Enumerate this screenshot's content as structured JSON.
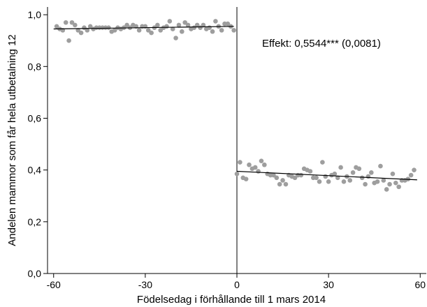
{
  "chart_data": {
    "type": "scatter",
    "title": "",
    "xlabel": "Födelsedag i förhållande till 1 mars 2014",
    "ylabel": "Andelen mammor som får hela utbetalning 12",
    "xlim": [
      -62,
      62
    ],
    "ylim": [
      0.0,
      1.03
    ],
    "xticks": [
      -60,
      -30,
      0,
      30,
      60
    ],
    "yticks": [
      0.0,
      0.2,
      0.4,
      0.6,
      0.8,
      1.0
    ],
    "xtick_labels": [
      "-60",
      "-30",
      "0",
      "30",
      "60"
    ],
    "ytick_labels": [
      "0,0",
      "0,2",
      "0,4",
      "0,6",
      "0,8",
      "1,0"
    ],
    "grid": false,
    "cutoff_x": 0,
    "annotation": "Effekt: 0,5544*** (0,0081)",
    "marker_color": "#9e9e9e",
    "line_color": "#000000",
    "points": [
      [
        -59,
        0.955
      ],
      [
        -58,
        0.945
      ],
      [
        -57,
        0.94
      ],
      [
        -56,
        0.97
      ],
      [
        -55,
        0.9
      ],
      [
        -54,
        0.97
      ],
      [
        -53,
        0.96
      ],
      [
        -52,
        0.94
      ],
      [
        -51,
        0.93
      ],
      [
        -50,
        0.95
      ],
      [
        -49,
        0.94
      ],
      [
        -48,
        0.955
      ],
      [
        -47,
        0.945
      ],
      [
        -46,
        0.95
      ],
      [
        -45,
        0.95
      ],
      [
        -44,
        0.95
      ],
      [
        -43,
        0.95
      ],
      [
        -42,
        0.95
      ],
      [
        -41,
        0.935
      ],
      [
        -40,
        0.94
      ],
      [
        -39,
        0.95
      ],
      [
        -38,
        0.945
      ],
      [
        -37,
        0.95
      ],
      [
        -36,
        0.96
      ],
      [
        -35,
        0.95
      ],
      [
        -34,
        0.96
      ],
      [
        -33,
        0.955
      ],
      [
        -32,
        0.94
      ],
      [
        -31,
        0.955
      ],
      [
        -30,
        0.955
      ],
      [
        -29,
        0.94
      ],
      [
        -28,
        0.93
      ],
      [
        -27,
        0.95
      ],
      [
        -26,
        0.96
      ],
      [
        -25,
        0.94
      ],
      [
        -24,
        0.95
      ],
      [
        -23,
        0.955
      ],
      [
        -22,
        0.975
      ],
      [
        -21,
        0.945
      ],
      [
        -20,
        0.91
      ],
      [
        -19,
        0.96
      ],
      [
        -18,
        0.935
      ],
      [
        -17,
        0.97
      ],
      [
        -16,
        0.96
      ],
      [
        -15,
        0.945
      ],
      [
        -14,
        0.95
      ],
      [
        -13,
        0.96
      ],
      [
        -12,
        0.95
      ],
      [
        -11,
        0.96
      ],
      [
        -10,
        0.945
      ],
      [
        -9,
        0.95
      ],
      [
        -8,
        0.935
      ],
      [
        -7,
        0.975
      ],
      [
        -6,
        0.955
      ],
      [
        -5,
        0.94
      ],
      [
        -4,
        0.965
      ],
      [
        -3,
        0.965
      ],
      [
        -2,
        0.955
      ],
      [
        -1,
        0.94
      ],
      [
        0,
        0.385
      ],
      [
        1,
        0.43
      ],
      [
        2,
        0.37
      ],
      [
        3,
        0.365
      ],
      [
        4,
        0.42
      ],
      [
        5,
        0.405
      ],
      [
        6,
        0.41
      ],
      [
        7,
        0.395
      ],
      [
        8,
        0.435
      ],
      [
        9,
        0.42
      ],
      [
        10,
        0.385
      ],
      [
        11,
        0.38
      ],
      [
        12,
        0.38
      ],
      [
        13,
        0.37
      ],
      [
        14,
        0.345
      ],
      [
        15,
        0.36
      ],
      [
        16,
        0.345
      ],
      [
        17,
        0.38
      ],
      [
        18,
        0.375
      ],
      [
        19,
        0.37
      ],
      [
        20,
        0.38
      ],
      [
        21,
        0.38
      ],
      [
        22,
        0.405
      ],
      [
        23,
        0.4
      ],
      [
        24,
        0.395
      ],
      [
        25,
        0.37
      ],
      [
        26,
        0.37
      ],
      [
        27,
        0.355
      ],
      [
        28,
        0.43
      ],
      [
        29,
        0.375
      ],
      [
        30,
        0.355
      ],
      [
        31,
        0.38
      ],
      [
        32,
        0.385
      ],
      [
        33,
        0.37
      ],
      [
        34,
        0.41
      ],
      [
        35,
        0.355
      ],
      [
        36,
        0.375
      ],
      [
        37,
        0.36
      ],
      [
        38,
        0.39
      ],
      [
        39,
        0.41
      ],
      [
        40,
        0.405
      ],
      [
        41,
        0.37
      ],
      [
        42,
        0.345
      ],
      [
        43,
        0.375
      ],
      [
        44,
        0.39
      ],
      [
        45,
        0.35
      ],
      [
        46,
        0.355
      ],
      [
        47,
        0.415
      ],
      [
        48,
        0.36
      ],
      [
        49,
        0.325
      ],
      [
        50,
        0.345
      ],
      [
        51,
        0.385
      ],
      [
        52,
        0.35
      ],
      [
        53,
        0.335
      ],
      [
        54,
        0.36
      ],
      [
        55,
        0.36
      ],
      [
        56,
        0.365
      ],
      [
        57,
        0.38
      ],
      [
        58,
        0.4
      ]
    ],
    "fit_lines": [
      {
        "x": [
          -60,
          -1
        ],
        "y": [
          0.945,
          0.955
        ]
      },
      {
        "x": [
          0,
          59
        ],
        "y": [
          0.395,
          0.362
        ]
      }
    ]
  }
}
